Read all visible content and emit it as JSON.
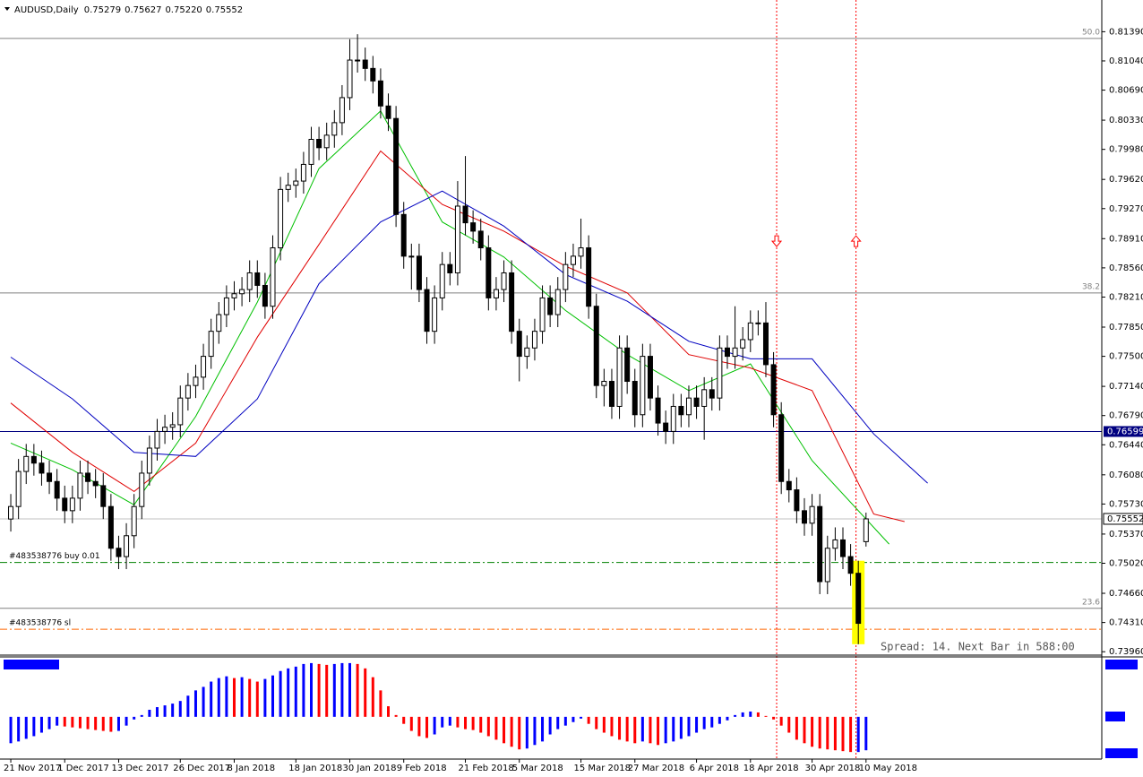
{
  "chart_data": {
    "type": "candlestick",
    "title": "AUDUSD,Daily",
    "header_values": [
      "0.75279",
      "0.75627",
      "0.75220",
      "0.75552"
    ],
    "spread_text": "Spread: 14. Next Bar in 588:00",
    "bull_color": "#ffffff",
    "bear_color": "#000000",
    "wick_color": "#000000",
    "highlight_index": 110,
    "highlight_color": "#ffff00",
    "xlim": [
      -1.4,
      141.6
    ],
    "ylim": [
      0.7393,
      0.8177
    ],
    "yticks": [
      {
        "value": 0.8139,
        "label": "0.81390"
      },
      {
        "value": 0.8104,
        "label": "0.81040"
      },
      {
        "value": 0.8069,
        "label": "0.80690"
      },
      {
        "value": 0.8033,
        "label": "0.80330"
      },
      {
        "value": 0.7998,
        "label": "0.79980"
      },
      {
        "value": 0.7962,
        "label": "0.79620"
      },
      {
        "value": 0.7927,
        "label": "0.79270"
      },
      {
        "value": 0.7891,
        "label": "0.78910"
      },
      {
        "value": 0.7856,
        "label": "0.78560"
      },
      {
        "value": 0.7821,
        "label": "0.78210"
      },
      {
        "value": 0.7785,
        "label": "0.77850"
      },
      {
        "value": 0.775,
        "label": "0.77500"
      },
      {
        "value": 0.7714,
        "label": "0.77140"
      },
      {
        "value": 0.7679,
        "label": "0.76790"
      },
      {
        "value": 0.7644,
        "label": "0.76440"
      },
      {
        "value": 0.7608,
        "label": "0.76080"
      },
      {
        "value": 0.7573,
        "label": "0.75730"
      },
      {
        "value": 0.7537,
        "label": "0.75370"
      },
      {
        "value": 0.7502,
        "label": "0.75020"
      },
      {
        "value": 0.7466,
        "label": "0.74660"
      },
      {
        "value": 0.7431,
        "label": "0.74310"
      },
      {
        "value": 0.7396,
        "label": "0.73960"
      }
    ],
    "xticks": [
      {
        "value": 0,
        "label": "21 Nov 2017"
      },
      {
        "value": 7,
        "label": "1 Dec 2017"
      },
      {
        "value": 14,
        "label": "13 Dec 2017"
      },
      {
        "value": 22,
        "label": "26 Dec 2017"
      },
      {
        "value": 29,
        "label": "8 Jan 2018"
      },
      {
        "value": 37,
        "label": "18 Jan 2018"
      },
      {
        "value": 44,
        "label": "30 Jan 2018"
      },
      {
        "value": 51,
        "label": "9 Feb 2018"
      },
      {
        "value": 59,
        "label": "21 Feb 2018"
      },
      {
        "value": 66,
        "label": "5 Mar 2018"
      },
      {
        "value": 74,
        "label": "15 Mar 2018"
      },
      {
        "value": 81,
        "label": "27 Mar 2018"
      },
      {
        "value": 89,
        "label": "6 Apr 2018"
      },
      {
        "value": 96,
        "label": "18 Apr 2018"
      },
      {
        "value": 104,
        "label": "30 Apr 2018"
      },
      {
        "value": 111,
        "label": "10 May 2018"
      }
    ],
    "fib_levels": [
      {
        "label": "50.0",
        "value": 0.8131
      },
      {
        "label": "38.2",
        "value": 0.7826
      },
      {
        "label": "23.6",
        "value": 0.7448
      }
    ],
    "support_line": {
      "value": 0.76599,
      "color": "#000080"
    },
    "price_line": {
      "value": 0.75552,
      "color": "#c0c0c0"
    },
    "order_lines": [
      {
        "label": "#483538776 buy 0.01",
        "value": 0.7503,
        "color": "#008000"
      },
      {
        "label": "#483538776 sl",
        "value": 0.7423,
        "color": "#ff6600"
      }
    ],
    "vertical_lines": [
      {
        "x": 99.4,
        "color": "#ff0000"
      },
      {
        "x": 109.7,
        "color": "#ff0000"
      }
    ],
    "arrows": [
      {
        "x": 99.4,
        "value": 0.7888,
        "direction": "down",
        "color": "#ff0000"
      },
      {
        "x": 109.7,
        "value": 0.7888,
        "direction": "up",
        "color": "#ff0000"
      }
    ],
    "ohlc": [
      [
        0.7555,
        0.7585,
        0.754,
        0.757
      ],
      [
        0.757,
        0.7627,
        0.7555,
        0.7612
      ],
      [
        0.7612,
        0.7645,
        0.7597,
        0.763
      ],
      [
        0.763,
        0.7645,
        0.7607,
        0.7622
      ],
      [
        0.7622,
        0.7637,
        0.7595,
        0.761
      ],
      [
        0.761,
        0.7625,
        0.7585,
        0.76
      ],
      [
        0.76,
        0.7615,
        0.7565,
        0.758
      ],
      [
        0.758,
        0.7595,
        0.755,
        0.7565
      ],
      [
        0.7565,
        0.7595,
        0.755,
        0.758
      ],
      [
        0.758,
        0.7625,
        0.7565,
        0.761
      ],
      [
        0.761,
        0.7625,
        0.7585,
        0.76
      ],
      [
        0.76,
        0.7615,
        0.758,
        0.7595
      ],
      [
        0.7595,
        0.761,
        0.7555,
        0.757
      ],
      [
        0.757,
        0.7585,
        0.7505,
        0.752
      ],
      [
        0.752,
        0.7535,
        0.7495,
        0.751
      ],
      [
        0.751,
        0.755,
        0.7495,
        0.7535
      ],
      [
        0.7535,
        0.7585,
        0.752,
        0.757
      ],
      [
        0.757,
        0.7625,
        0.7555,
        0.761
      ],
      [
        0.761,
        0.7655,
        0.7595,
        0.764
      ],
      [
        0.764,
        0.7675,
        0.7625,
        0.766
      ],
      [
        0.766,
        0.768,
        0.7645,
        0.7665
      ],
      [
        0.7665,
        0.7683,
        0.765,
        0.7668
      ],
      [
        0.7668,
        0.7715,
        0.7653,
        0.77
      ],
      [
        0.77,
        0.773,
        0.7685,
        0.7715
      ],
      [
        0.7715,
        0.774,
        0.77,
        0.7725
      ],
      [
        0.7725,
        0.7765,
        0.771,
        0.775
      ],
      [
        0.775,
        0.7795,
        0.7735,
        0.778
      ],
      [
        0.778,
        0.7815,
        0.7765,
        0.78
      ],
      [
        0.78,
        0.7835,
        0.7785,
        0.782
      ],
      [
        0.782,
        0.784,
        0.7805,
        0.7825
      ],
      [
        0.7825,
        0.7845,
        0.781,
        0.783
      ],
      [
        0.783,
        0.7865,
        0.7815,
        0.785
      ],
      [
        0.785,
        0.7865,
        0.782,
        0.7835
      ],
      [
        0.7835,
        0.785,
        0.7795,
        0.781
      ],
      [
        0.781,
        0.7895,
        0.7795,
        0.788
      ],
      [
        0.788,
        0.7965,
        0.7865,
        0.795
      ],
      [
        0.795,
        0.797,
        0.7935,
        0.7955
      ],
      [
        0.7955,
        0.7975,
        0.794,
        0.796
      ],
      [
        0.796,
        0.7995,
        0.7945,
        0.798
      ],
      [
        0.798,
        0.8025,
        0.7965,
        0.801
      ],
      [
        0.801,
        0.8025,
        0.7985,
        0.8
      ],
      [
        0.8,
        0.803,
        0.7985,
        0.8015
      ],
      [
        0.8015,
        0.8045,
        0.8,
        0.803
      ],
      [
        0.803,
        0.8075,
        0.8015,
        0.806
      ],
      [
        0.806,
        0.813,
        0.8045,
        0.8105
      ],
      [
        0.8105,
        0.8136,
        0.809,
        0.8105
      ],
      [
        0.8105,
        0.812,
        0.808,
        0.8095
      ],
      [
        0.8095,
        0.811,
        0.8065,
        0.808
      ],
      [
        0.808,
        0.8095,
        0.8035,
        0.805
      ],
      [
        0.805,
        0.8065,
        0.802,
        0.8035
      ],
      [
        0.8035,
        0.805,
        0.7905,
        0.792
      ],
      [
        0.792,
        0.7935,
        0.7855,
        0.787
      ],
      [
        0.787,
        0.7885,
        0.783,
        0.787
      ],
      [
        0.787,
        0.7885,
        0.7815,
        0.783
      ],
      [
        0.783,
        0.7845,
        0.7765,
        0.778
      ],
      [
        0.778,
        0.7835,
        0.7765,
        0.782
      ],
      [
        0.782,
        0.7875,
        0.7805,
        0.786
      ],
      [
        0.786,
        0.7875,
        0.7835,
        0.785
      ],
      [
        0.785,
        0.796,
        0.7835,
        0.793
      ],
      [
        0.793,
        0.799,
        0.7895,
        0.791
      ],
      [
        0.791,
        0.7925,
        0.7885,
        0.79
      ],
      [
        0.79,
        0.7915,
        0.7865,
        0.788
      ],
      [
        0.788,
        0.7895,
        0.7805,
        0.782
      ],
      [
        0.782,
        0.7845,
        0.7805,
        0.783
      ],
      [
        0.783,
        0.7865,
        0.7815,
        0.785
      ],
      [
        0.785,
        0.7865,
        0.7765,
        0.778
      ],
      [
        0.778,
        0.7795,
        0.772,
        0.775
      ],
      [
        0.775,
        0.7775,
        0.7735,
        0.776
      ],
      [
        0.776,
        0.7795,
        0.7745,
        0.778
      ],
      [
        0.778,
        0.7835,
        0.7765,
        0.782
      ],
      [
        0.782,
        0.7835,
        0.7785,
        0.78
      ],
      [
        0.78,
        0.7845,
        0.7785,
        0.783
      ],
      [
        0.783,
        0.7875,
        0.7815,
        0.786
      ],
      [
        0.786,
        0.7885,
        0.7845,
        0.787
      ],
      [
        0.787,
        0.7915,
        0.7855,
        0.788
      ],
      [
        0.788,
        0.7895,
        0.7795,
        0.781
      ],
      [
        0.781,
        0.7825,
        0.77,
        0.7715
      ],
      [
        0.7715,
        0.7735,
        0.769,
        0.772
      ],
      [
        0.772,
        0.7735,
        0.7675,
        0.769
      ],
      [
        0.769,
        0.7775,
        0.7675,
        0.776
      ],
      [
        0.776,
        0.7775,
        0.7705,
        0.772
      ],
      [
        0.772,
        0.7735,
        0.7665,
        0.768
      ],
      [
        0.768,
        0.7765,
        0.7665,
        0.775
      ],
      [
        0.775,
        0.7765,
        0.7685,
        0.77
      ],
      [
        0.77,
        0.7715,
        0.7655,
        0.767
      ],
      [
        0.767,
        0.7685,
        0.7645,
        0.766
      ],
      [
        0.766,
        0.7705,
        0.7645,
        0.769
      ],
      [
        0.769,
        0.7705,
        0.7665,
        0.768
      ],
      [
        0.768,
        0.7715,
        0.7665,
        0.77
      ],
      [
        0.77,
        0.7715,
        0.7675,
        0.769
      ],
      [
        0.769,
        0.7725,
        0.765,
        0.771
      ],
      [
        0.771,
        0.7725,
        0.7685,
        0.77
      ],
      [
        0.77,
        0.7775,
        0.7685,
        0.776
      ],
      [
        0.776,
        0.7775,
        0.7735,
        0.775
      ],
      [
        0.775,
        0.781,
        0.7735,
        0.776
      ],
      [
        0.776,
        0.7785,
        0.7745,
        0.777
      ],
      [
        0.777,
        0.7805,
        0.7755,
        0.779
      ],
      [
        0.779,
        0.7805,
        0.7775,
        0.779
      ],
      [
        0.779,
        0.7815,
        0.7725,
        0.774
      ],
      [
        0.774,
        0.7755,
        0.7665,
        0.768
      ],
      [
        0.768,
        0.7695,
        0.7585,
        0.76
      ],
      [
        0.76,
        0.7615,
        0.7575,
        0.759
      ],
      [
        0.759,
        0.7605,
        0.755,
        0.7565
      ],
      [
        0.7565,
        0.758,
        0.7535,
        0.755
      ],
      [
        0.755,
        0.7585,
        0.7535,
        0.757
      ],
      [
        0.757,
        0.7585,
        0.7465,
        0.748
      ],
      [
        0.748,
        0.7535,
        0.7465,
        0.752
      ],
      [
        0.752,
        0.7545,
        0.7505,
        0.753
      ],
      [
        0.753,
        0.7545,
        0.7495,
        0.751
      ],
      [
        0.751,
        0.7525,
        0.7475,
        0.749
      ],
      [
        0.749,
        0.7505,
        0.7405,
        0.743
      ],
      [
        0.75279,
        0.75627,
        0.7522,
        0.75552
      ]
    ],
    "moving_averages": [
      {
        "color": "#00c000",
        "x": [
          0,
          8,
          16,
          24,
          32,
          40,
          48,
          56,
          64,
          72,
          80,
          88,
          96,
          104,
          114
        ],
        "values": [
          0.7646,
          0.7614,
          0.7572,
          0.7678,
          0.7815,
          0.7975,
          0.8044,
          0.7911,
          0.7869,
          0.7805,
          0.7752,
          0.7709,
          0.7741,
          0.7625,
          0.7525
        ]
      },
      {
        "color": "#e00000",
        "x": [
          0,
          8,
          16,
          24,
          32,
          40,
          48,
          56,
          64,
          72,
          80,
          88,
          96,
          104,
          112,
          116
        ],
        "values": [
          0.7694,
          0.7635,
          0.7588,
          0.7646,
          0.7773,
          0.7884,
          0.7996,
          0.7932,
          0.79,
          0.7858,
          0.7826,
          0.7752,
          0.7736,
          0.7709,
          0.7561,
          0.7552
        ]
      },
      {
        "color": "#0000c0",
        "x": [
          0,
          8,
          16,
          24,
          32,
          40,
          48,
          56,
          64,
          72,
          80,
          88,
          96,
          104,
          112,
          119
        ],
        "values": [
          0.7749,
          0.7699,
          0.7635,
          0.763,
          0.7699,
          0.7837,
          0.7911,
          0.7948,
          0.7906,
          0.7848,
          0.7816,
          0.7768,
          0.7747,
          0.7747,
          0.7657,
          0.7598
        ]
      }
    ],
    "indicator": {
      "ylim": [
        -0.0048,
        0.0066
      ],
      "up_color": "#0000ff",
      "down_color": "#ff0000",
      "values": [
        -0.003,
        -0.0028,
        -0.0025,
        -0.0022,
        -0.0018,
        -0.0014,
        -0.001,
        -0.0011,
        -0.0012,
        -0.0013,
        -0.0014,
        -0.0015,
        -0.0016,
        -0.0017,
        -0.0016,
        -0.001,
        -0.0003,
        0.0002,
        0.0008,
        0.0011,
        0.0013,
        0.0015,
        0.0018,
        0.0024,
        0.003,
        0.0034,
        0.004,
        0.0044,
        0.0046,
        0.0044,
        0.0045,
        0.0043,
        0.004,
        0.0043,
        0.0047,
        0.0052,
        0.0055,
        0.0057,
        0.006,
        0.0061,
        0.006,
        0.0059,
        0.006,
        0.0061,
        0.0061,
        0.006,
        0.0055,
        0.0045,
        0.003,
        0.0012,
        0.0002,
        -0.0008,
        -0.0016,
        -0.0022,
        -0.0024,
        -0.002,
        -0.0012,
        -0.001,
        -0.0012,
        -0.0014,
        -0.0015,
        -0.0018,
        -0.0022,
        -0.0026,
        -0.003,
        -0.0034,
        -0.0037,
        -0.0036,
        -0.0032,
        -0.0028,
        -0.002,
        -0.0014,
        -0.001,
        -0.0006,
        -0.0002,
        -0.0008,
        -0.0014,
        -0.0018,
        -0.0022,
        -0.0026,
        -0.0028,
        -0.003,
        -0.0028,
        -0.003,
        -0.0032,
        -0.003,
        -0.0028,
        -0.0025,
        -0.0022,
        -0.0018,
        -0.0014,
        -0.0012,
        -0.0008,
        -0.0004,
        0.0002,
        0.0005,
        0.0006,
        0.0005,
        0.0001,
        -0.0003,
        -0.001,
        -0.0018,
        -0.0026,
        -0.003,
        -0.0034,
        -0.0036,
        -0.0037,
        -0.0038,
        -0.0039,
        -0.004,
        -0.004,
        -0.0038
      ]
    }
  }
}
